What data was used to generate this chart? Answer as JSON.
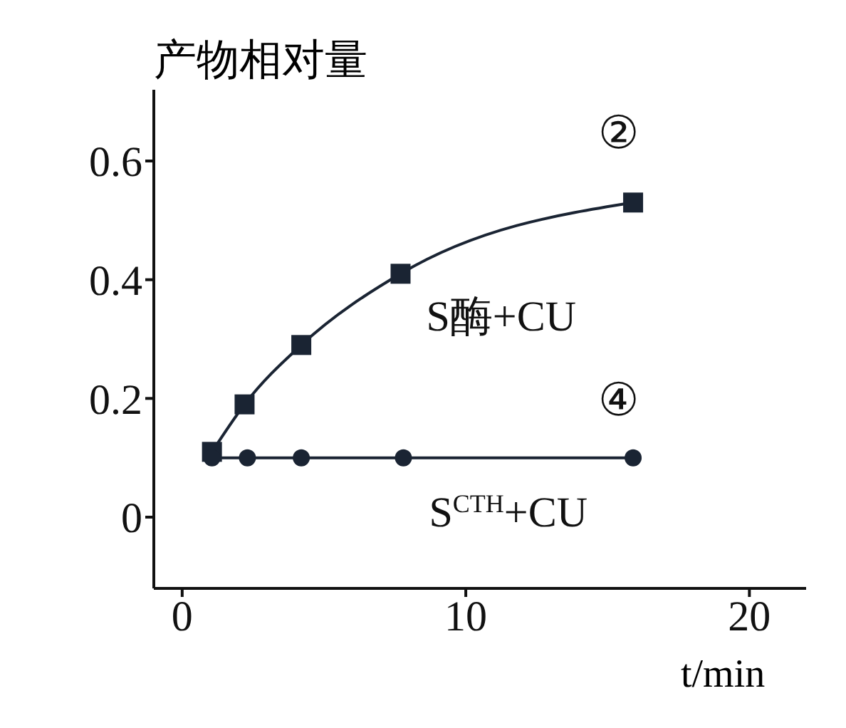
{
  "chart_data": {
    "type": "line",
    "xlabel": "t/min",
    "ylabel": "产物相对量",
    "xlim": [
      -1,
      22
    ],
    "ylim": [
      -0.12,
      0.72
    ],
    "xticks": [
      0,
      10,
      20
    ],
    "yticks": [
      0,
      0.2,
      0.4,
      0.6
    ],
    "grid": false,
    "series": [
      {
        "name": "S酶+CU",
        "color": "#1a2433",
        "marker": "square",
        "x": [
          1.05,
          2.2,
          4.2,
          7.7,
          15.9
        ],
        "values": [
          0.11,
          0.19,
          0.29,
          0.41,
          0.53
        ]
      },
      {
        "name": "S$^{CTH}$+CU",
        "color": "#1a2433",
        "marker": "circle",
        "x": [
          1.05,
          2.3,
          4.2,
          7.8,
          15.9
        ],
        "values": [
          0.1,
          0.1,
          0.1,
          0.1,
          0.1
        ]
      }
    ],
    "annotations": [
      "②",
      "④"
    ]
  }
}
